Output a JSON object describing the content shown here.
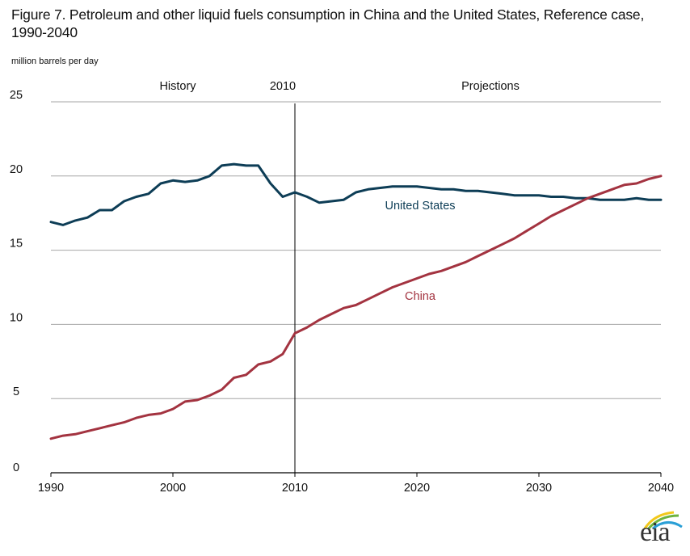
{
  "chart_data": {
    "type": "line",
    "title": "Figure 7. Petroleum and other liquid fuels consumption in China and the United States, Reference case, 1990-2040",
    "ylabel": "million barrels per day",
    "xlabel": "",
    "xlim": [
      1990,
      2040
    ],
    "ylim": [
      0,
      25
    ],
    "x_ticks": [
      1990,
      2000,
      2010,
      2020,
      2030,
      2040
    ],
    "y_ticks": [
      0,
      5,
      10,
      15,
      20,
      25
    ],
    "grid": "horizontal",
    "legend": "inline-labels",
    "annotations": {
      "divider_year": 2010,
      "divider_label": "2010",
      "history_label": "History",
      "projections_label": "Projections"
    },
    "x": [
      1990,
      1991,
      1992,
      1993,
      1994,
      1995,
      1996,
      1997,
      1998,
      1999,
      2000,
      2001,
      2002,
      2003,
      2004,
      2005,
      2006,
      2007,
      2008,
      2009,
      2010,
      2011,
      2012,
      2013,
      2014,
      2015,
      2016,
      2017,
      2018,
      2019,
      2020,
      2021,
      2022,
      2023,
      2024,
      2025,
      2026,
      2027,
      2028,
      2029,
      2030,
      2031,
      2032,
      2033,
      2034,
      2035,
      2036,
      2037,
      2038,
      2039,
      2040
    ],
    "series": [
      {
        "name": "United States",
        "color": "#0d3d56",
        "values": [
          16.9,
          16.7,
          17.0,
          17.2,
          17.7,
          17.7,
          18.3,
          18.6,
          18.8,
          19.5,
          19.7,
          19.6,
          19.7,
          20.0,
          20.7,
          20.8,
          20.7,
          20.7,
          19.5,
          18.6,
          18.9,
          18.6,
          18.2,
          18.3,
          18.4,
          18.9,
          19.1,
          19.2,
          19.3,
          19.3,
          19.3,
          19.2,
          19.1,
          19.1,
          19.0,
          19.0,
          18.9,
          18.8,
          18.7,
          18.7,
          18.7,
          18.6,
          18.6,
          18.5,
          18.5,
          18.4,
          18.4,
          18.4,
          18.5,
          18.4,
          18.4
        ]
      },
      {
        "name": "China",
        "color": "#a33340",
        "values": [
          2.3,
          2.5,
          2.6,
          2.8,
          3.0,
          3.2,
          3.4,
          3.7,
          3.9,
          4.0,
          4.3,
          4.8,
          4.9,
          5.2,
          5.6,
          6.4,
          6.6,
          7.3,
          7.5,
          8.0,
          9.4,
          9.8,
          10.3,
          10.7,
          11.1,
          11.3,
          11.7,
          12.1,
          12.5,
          12.8,
          13.1,
          13.4,
          13.6,
          13.9,
          14.2,
          14.6,
          15.0,
          15.4,
          15.8,
          16.3,
          16.8,
          17.3,
          17.7,
          18.1,
          18.5,
          18.8,
          19.1,
          19.4,
          19.5,
          19.8,
          20.0
        ]
      }
    ]
  },
  "logo": {
    "text": "eia"
  }
}
